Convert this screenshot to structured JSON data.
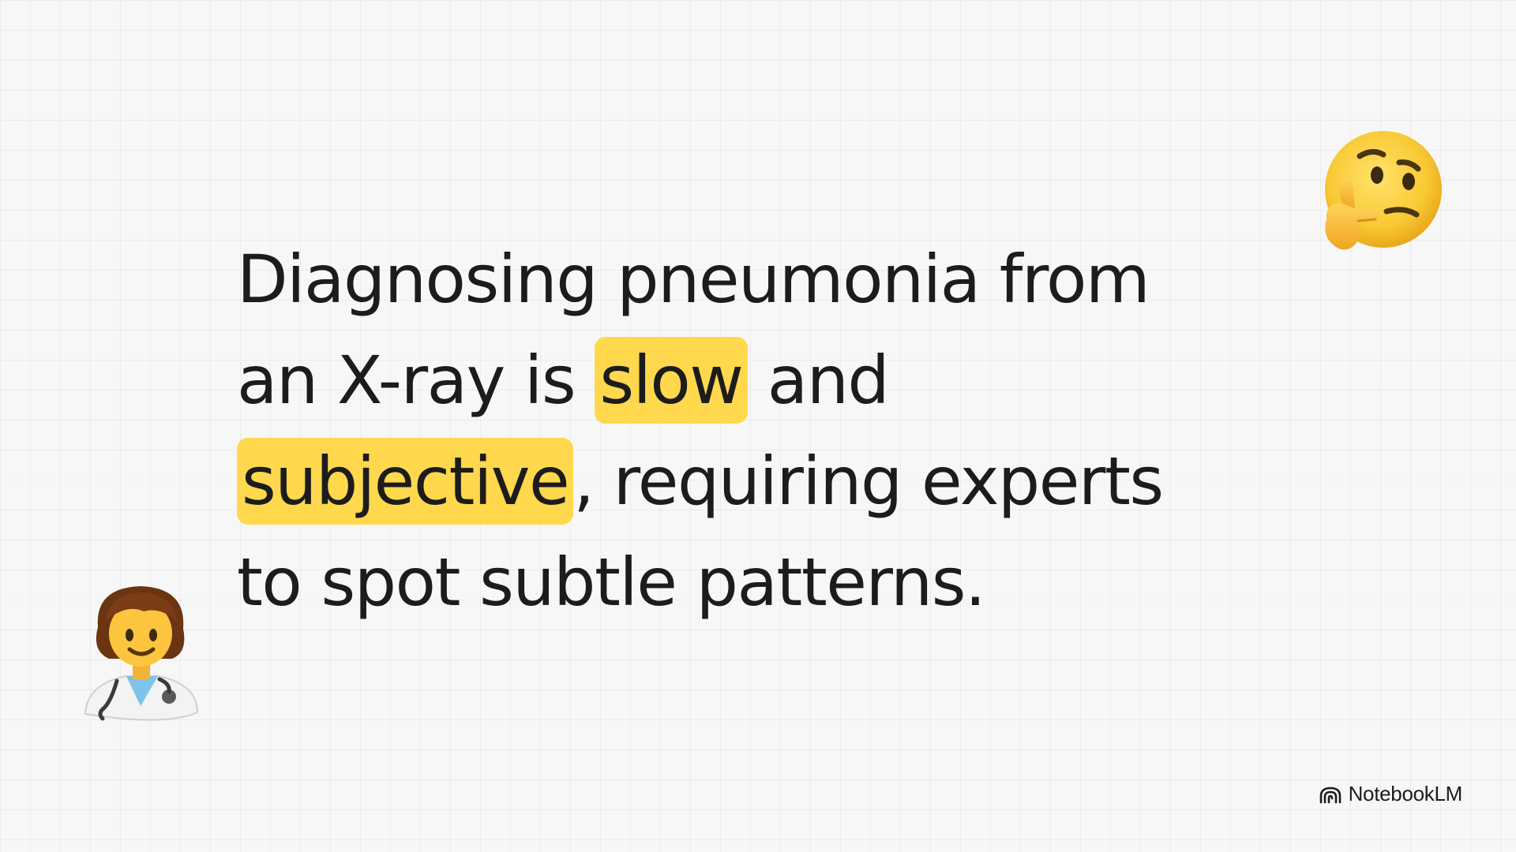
{
  "slide": {
    "lines": [
      [
        {
          "text": "Diagnosing pneumonia from",
          "highlight": false
        }
      ],
      [
        {
          "text": "an X-ray is ",
          "highlight": false
        },
        {
          "text": "slow",
          "highlight": true
        },
        {
          "text": " and",
          "highlight": false
        }
      ],
      [
        {
          "text": "subjective",
          "highlight": true
        },
        {
          "text": ", requiring experts",
          "highlight": false
        }
      ],
      [
        {
          "text": "to spot subtle patterns.",
          "highlight": false
        }
      ]
    ],
    "highlight_color": "#ffd84d"
  },
  "decorations": {
    "top_right_icon": "thinking-face-icon",
    "bottom_left_icon": "health-worker-icon"
  },
  "brand": {
    "label": "NotebookLM",
    "icon": "notebooklm-logo-icon"
  }
}
